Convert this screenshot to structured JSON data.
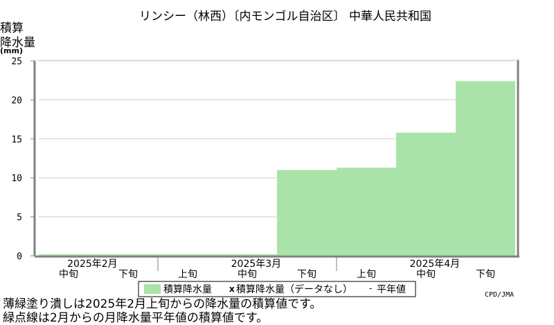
{
  "chart_data": {
    "type": "bar",
    "title": "リンシー（林西）〔内モンゴル自治区〕 中華人民共和国",
    "ylabel_lines": [
      "積算",
      "降水量",
      "(mm)"
    ],
    "ylim": [
      0,
      25
    ],
    "yticks": [
      0,
      5,
      10,
      15,
      20,
      25
    ],
    "grid": true,
    "categories": [
      "2025年2月 中旬",
      "2025年2月 下旬",
      "2025年3月 上旬",
      "2025年3月 中旬",
      "2025年3月 下旬",
      "2025年4月 上旬",
      "2025年4月 中旬",
      "2025年4月 下旬"
    ],
    "x_dekad_labels": [
      "中旬",
      "下旬",
      "上旬",
      "中旬",
      "下旬",
      "上旬",
      "中旬",
      "下旬"
    ],
    "x_month_labels": [
      "2025年2月",
      "2025年3月",
      "2025年4月"
    ],
    "series": [
      {
        "name": "積算降水量",
        "values": [
          0.2,
          0.2,
          0.2,
          0.2,
          11.0,
          11.3,
          15.8,
          22.4
        ]
      }
    ],
    "legend": {
      "placement": "bottom",
      "items": [
        "積算降水量",
        "積算降水量（データなし）",
        "平年値"
      ],
      "nodata_marker": "x",
      "normal_marker": "-"
    },
    "colors": {
      "bar": "#aae3aa",
      "grid": "#d0d0d0",
      "axis": "#808080"
    }
  },
  "notes": [
    "薄緑塗り潰しは2025年2月上旬からの降水量の積算値です。",
    "緑点線は2月からの月降水量平年値の積算値です。"
  ],
  "credit": "CPD/JMA"
}
